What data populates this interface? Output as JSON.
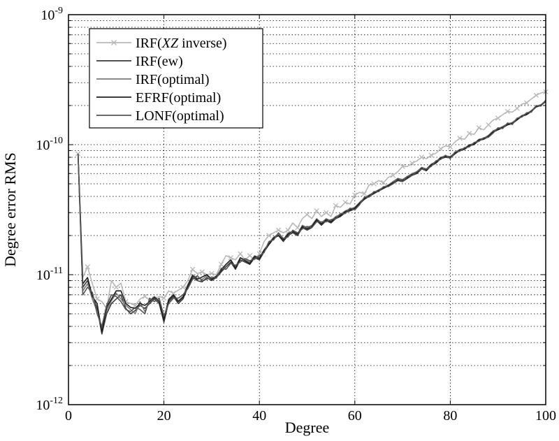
{
  "chart_data": {
    "type": "line",
    "title": "",
    "xlabel": "Degree",
    "ylabel": "Degree error RMS",
    "xlim": [
      0,
      100
    ],
    "ylim": [
      1e-12,
      1e-09
    ],
    "yscale": "log",
    "grid": true,
    "legend_position": "top-left",
    "x_ticks": [
      {
        "value": 0,
        "label": "0"
      },
      {
        "value": 20,
        "label": "20"
      },
      {
        "value": 40,
        "label": "40"
      },
      {
        "value": 60,
        "label": "60"
      },
      {
        "value": 80,
        "label": "80"
      },
      {
        "value": 100,
        "label": "100"
      }
    ],
    "y_ticks": [
      {
        "value": 1e-12,
        "base": "10",
        "exp": "-12"
      },
      {
        "value": 1e-11,
        "base": "10",
        "exp": "-11"
      },
      {
        "value": 1e-10,
        "base": "10",
        "exp": "-10"
      },
      {
        "value": 1e-09,
        "base": "10",
        "exp": "-9"
      }
    ],
    "series": [
      {
        "name": "IRF(XZ inverse)",
        "name_parts": [
          {
            "text": "IRF(",
            "italic": false
          },
          {
            "text": "XZ",
            "italic": true
          },
          {
            "text": " inverse)",
            "italic": false
          }
        ],
        "color": "#b8b8b8",
        "marker": "x",
        "x": [
          2,
          3,
          4,
          5,
          6,
          7,
          8,
          9,
          10,
          11,
          12,
          13,
          14,
          15,
          16,
          17,
          18,
          19,
          20,
          21,
          22,
          23,
          24,
          25,
          26,
          27,
          28,
          29,
          30,
          31,
          32,
          33,
          34,
          35,
          36,
          37,
          38,
          39,
          40,
          41,
          42,
          43,
          44,
          45,
          46,
          47,
          48,
          49,
          50,
          51,
          52,
          53,
          54,
          55,
          56,
          57,
          58,
          59,
          60,
          61,
          62,
          63,
          64,
          65,
          66,
          67,
          68,
          69,
          70,
          71,
          72,
          73,
          74,
          75,
          76,
          77,
          78,
          79,
          80,
          81,
          82,
          83,
          84,
          85,
          86,
          87,
          88,
          89,
          90,
          91,
          92,
          93,
          94,
          95,
          96,
          97,
          98,
          99,
          100
        ],
        "y": [
          8.5e-11,
          9.5e-12,
          1.15e-11,
          8.5e-12,
          6.5e-12,
          6.2e-12,
          5.5e-12,
          9e-12,
          8e-12,
          8.6e-12,
          6.2e-12,
          6e-12,
          5.8e-12,
          6.5e-12,
          6.8e-12,
          6.4e-12,
          6.5e-12,
          6.8e-12,
          6.6e-12,
          7.5e-12,
          7.2e-12,
          7.6e-12,
          8e-12,
          9e-12,
          1.1e-11,
          1.02e-11,
          1.05e-11,
          1e-11,
          1.02e-11,
          1e-11,
          1.2e-11,
          1.4e-11,
          1.35e-11,
          1.3e-11,
          1.45e-11,
          1.3e-11,
          1.4e-11,
          1.3e-11,
          1.45e-11,
          1.8e-11,
          2e-11,
          2.1e-11,
          2.2e-11,
          2.1e-11,
          2.2e-11,
          2.5e-11,
          2.3e-11,
          2.7e-11,
          2.9e-11,
          2.7e-11,
          3.1e-11,
          2.8e-11,
          3e-11,
          2.8e-11,
          3.4e-11,
          3.3e-11,
          3.6e-11,
          3.5e-11,
          4.1e-11,
          4.3e-11,
          4.2e-11,
          4.9e-11,
          5e-11,
          5.3e-11,
          5.1e-11,
          5.6e-11,
          5.8e-11,
          6.2e-11,
          6.8e-11,
          6.8e-11,
          7.2e-11,
          7.5e-11,
          8e-11,
          7.8e-11,
          8.3e-11,
          8.6e-11,
          9.3e-11,
          9.8e-11,
          9.6e-11,
          1.05e-10,
          1.12e-10,
          1.1e-10,
          1.22e-10,
          1.2e-10,
          1.35e-10,
          1.3e-10,
          1.42e-10,
          1.55e-10,
          1.6e-10,
          1.7e-10,
          1.8e-10,
          1.78e-10,
          1.9e-10,
          2.05e-10,
          2.1e-10,
          2.25e-10,
          2.4e-10,
          2.5e-10,
          2.55e-10
        ]
      },
      {
        "name": "IRF(ew)",
        "color": "#3a3a3a",
        "x": [
          2,
          3,
          4,
          5,
          6,
          7,
          8,
          9,
          10,
          11,
          12,
          13,
          14,
          15,
          16,
          17,
          18,
          19,
          20,
          21,
          22,
          23,
          24,
          25,
          26,
          27,
          28,
          29,
          30,
          31,
          32,
          33,
          34,
          35,
          36,
          37,
          38,
          39,
          40,
          41,
          42,
          43,
          44,
          45,
          46,
          47,
          48,
          49,
          50,
          51,
          52,
          53,
          54,
          55,
          56,
          57,
          58,
          59,
          60,
          61,
          62,
          63,
          64,
          65,
          66,
          67,
          68,
          69,
          70,
          71,
          72,
          73,
          74,
          75,
          76,
          77,
          78,
          79,
          80,
          81,
          82,
          83,
          84,
          85,
          86,
          87,
          88,
          89,
          90,
          91,
          92,
          93,
          94,
          95,
          96,
          97,
          98,
          99,
          100
        ],
        "y": [
          8.5e-11,
          8e-12,
          9e-12,
          7e-12,
          5.5e-12,
          3.5e-12,
          5e-12,
          6e-12,
          6.5e-12,
          7e-12,
          5.5e-12,
          5e-12,
          5.3e-12,
          5.8e-12,
          5.5e-12,
          6e-12,
          6.5e-12,
          6e-12,
          4.3e-12,
          6.2e-12,
          6.8e-12,
          6e-12,
          6.5e-12,
          8e-12,
          9.5e-12,
          9e-12,
          8.8e-12,
          9.5e-12,
          9e-12,
          9.5e-12,
          1.05e-11,
          1.15e-11,
          1.25e-11,
          1.1e-11,
          1.3e-11,
          1.25e-11,
          1.2e-11,
          1.35e-11,
          1.3e-11,
          1.5e-11,
          1.7e-11,
          1.9e-11,
          2e-11,
          1.8e-11,
          2e-11,
          2.1e-11,
          2e-11,
          2.3e-11,
          2.2e-11,
          2.3e-11,
          2.6e-11,
          2.4e-11,
          2.6e-11,
          2.5e-11,
          2.7e-11,
          2.8e-11,
          3e-11,
          3.1e-11,
          3.2e-11,
          3.5e-11,
          3.8e-11,
          4e-11,
          4.2e-11,
          4.4e-11,
          4.6e-11,
          4.8e-11,
          5e-11,
          5.3e-11,
          5.2e-11,
          5.5e-11,
          5.8e-11,
          6e-11,
          6.5e-11,
          6.3e-11,
          6.9e-11,
          7.2e-11,
          7.8e-11,
          8e-11,
          7.9e-11,
          8.5e-11,
          9e-11,
          9.2e-11,
          9.8e-11,
          1e-10,
          1.08e-10,
          1.1e-10,
          1.15e-10,
          1.25e-10,
          1.3e-10,
          1.35e-10,
          1.42e-10,
          1.45e-10,
          1.55e-10,
          1.65e-10,
          1.7e-10,
          1.8e-10,
          1.95e-10,
          2e-10,
          2.15e-10
        ]
      },
      {
        "name": "IRF(optimal)",
        "color": "#7a7a7a",
        "x": [
          2,
          3,
          4,
          5,
          6,
          7,
          8,
          9,
          10,
          11,
          12,
          13,
          14,
          15,
          16,
          17,
          18,
          19,
          20,
          21,
          22,
          23,
          24,
          25,
          26,
          27,
          28,
          29,
          30,
          31,
          32,
          33,
          34,
          35,
          36,
          37,
          38,
          39,
          40,
          41,
          42,
          43,
          44,
          45,
          46,
          47,
          48,
          49,
          50,
          51,
          52,
          53,
          54,
          55,
          56,
          57,
          58,
          59,
          60,
          61,
          62,
          63,
          64,
          65,
          66,
          67,
          68,
          69,
          70,
          71,
          72,
          73,
          74,
          75,
          76,
          77,
          78,
          79,
          80,
          81,
          82,
          83,
          84,
          85,
          86,
          87,
          88,
          89,
          90,
          91,
          92,
          93,
          94,
          95,
          96,
          97,
          98,
          99,
          100
        ],
        "y": [
          8.5e-11,
          7.5e-12,
          8.5e-12,
          6.5e-12,
          5.2e-12,
          3.8e-12,
          5.3e-12,
          6.3e-12,
          7.2e-12,
          6.5e-12,
          5.8e-12,
          5.4e-12,
          5e-12,
          6.2e-12,
          5.2e-12,
          6.3e-12,
          6.8e-12,
          6.3e-12,
          4.6e-12,
          6.5e-12,
          7e-12,
          6.3e-12,
          6.8e-12,
          8.4e-12,
          1e-11,
          9.4e-12,
          9.2e-12,
          9.8e-12,
          9.3e-12,
          9.8e-12,
          1.1e-11,
          1.2e-11,
          1.3e-11,
          1.15e-11,
          1.35e-11,
          1.3e-11,
          1.25e-11,
          1.4e-11,
          1.35e-11,
          1.55e-11,
          1.75e-11,
          1.95e-11,
          2.05e-11,
          1.85e-11,
          2.1e-11,
          2.15e-11,
          2.05e-11,
          2.4e-11,
          2.3e-11,
          2.4e-11,
          2.7e-11,
          2.5e-11,
          2.7e-11,
          2.6e-11,
          2.8e-11,
          2.9e-11,
          3.1e-11,
          3.2e-11,
          3.3e-11,
          3.6e-11,
          3.9e-11,
          4.1e-11,
          4.3e-11,
          4.5e-11,
          4.7e-11,
          4.9e-11,
          5.2e-11,
          5.5e-11,
          5.4e-11,
          5.7e-11,
          6e-11,
          6.2e-11,
          6.7e-11,
          6.5e-11,
          7.1e-11,
          7.4e-11,
          8e-11,
          8.2e-11,
          8.1e-11,
          8.7e-11,
          9.2e-11,
          9.4e-11,
          1e-10,
          1.02e-10,
          1.1e-10,
          1.12e-10,
          1.18e-10,
          1.28e-10,
          1.33e-10,
          1.38e-10,
          1.45e-10,
          1.48e-10,
          1.58e-10,
          1.68e-10,
          1.73e-10,
          1.83e-10,
          1.98e-10,
          2.03e-10,
          2.18e-10
        ]
      },
      {
        "name": "EFRF(optimal)",
        "color": "#1e1e1e",
        "x": [
          2,
          3,
          4,
          5,
          6,
          7,
          8,
          9,
          10,
          11,
          12,
          13,
          14,
          15,
          16,
          17,
          18,
          19,
          20,
          21,
          22,
          23,
          24,
          25,
          26,
          27,
          28,
          29,
          30,
          31,
          32,
          33,
          34,
          35,
          36,
          37,
          38,
          39,
          40,
          41,
          42,
          43,
          44,
          45,
          46,
          47,
          48,
          49,
          50,
          51,
          52,
          53,
          54,
          55,
          56,
          57,
          58,
          59,
          60,
          61,
          62,
          63,
          64,
          65,
          66,
          67,
          68,
          69,
          70,
          71,
          72,
          73,
          74,
          75,
          76,
          77,
          78,
          79,
          80,
          81,
          82,
          83,
          84,
          85,
          86,
          87,
          88,
          89,
          90,
          91,
          92,
          93,
          94,
          95,
          96,
          97,
          98,
          99,
          100
        ],
        "y": [
          8.5e-11,
          8.5e-12,
          9.5e-12,
          6.8e-12,
          6e-12,
          3.6e-12,
          5.6e-12,
          6.5e-12,
          7.5e-12,
          7.5e-12,
          6e-12,
          5.6e-12,
          5.5e-12,
          6e-12,
          5.8e-12,
          6.2e-12,
          6.7e-12,
          6.2e-12,
          4.5e-12,
          6.4e-12,
          7e-12,
          6.2e-12,
          6.7e-12,
          8.2e-12,
          9.8e-12,
          9.2e-12,
          9.6e-12,
          1e-11,
          9.2e-12,
          9.7e-12,
          1.08e-11,
          1.2e-11,
          1.3e-11,
          1.12e-11,
          1.35e-11,
          1.28e-11,
          1.22e-11,
          1.38e-11,
          1.33e-11,
          1.55e-11,
          1.72e-11,
          1.92e-11,
          2e-11,
          1.85e-11,
          2.05e-11,
          2.15e-11,
          2.05e-11,
          2.35e-11,
          2.25e-11,
          2.35e-11,
          2.65e-11,
          2.45e-11,
          2.65e-11,
          2.55e-11,
          2.75e-11,
          2.85e-11,
          3.05e-11,
          3.15e-11,
          3.25e-11,
          3.55e-11,
          3.85e-11,
          4.05e-11,
          4.25e-11,
          4.45e-11,
          4.65e-11,
          4.85e-11,
          5.1e-11,
          5.4e-11,
          5.3e-11,
          5.6e-11,
          5.9e-11,
          6.1e-11,
          6.6e-11,
          6.4e-11,
          7e-11,
          7.3e-11,
          7.9e-11,
          8.1e-11,
          8e-11,
          8.6e-11,
          9.1e-11,
          9.3e-11,
          9.9e-11,
          1.01e-10,
          1.09e-10,
          1.11e-10,
          1.16e-10,
          1.26e-10,
          1.31e-10,
          1.36e-10,
          1.43e-10,
          1.46e-10,
          1.56e-10,
          1.66e-10,
          1.71e-10,
          1.81e-10,
          1.96e-10,
          2.01e-10,
          2.16e-10
        ]
      },
      {
        "name": "LONF(optimal)",
        "color": "#555555",
        "x": [
          2,
          3,
          4,
          5,
          6,
          7,
          8,
          9,
          10,
          11,
          12,
          13,
          14,
          15,
          16,
          17,
          18,
          19,
          20,
          21,
          22,
          23,
          24,
          25,
          26,
          27,
          28,
          29,
          30,
          31,
          32,
          33,
          34,
          35,
          36,
          37,
          38,
          39,
          40,
          41,
          42,
          43,
          44,
          45,
          46,
          47,
          48,
          49,
          50,
          51,
          52,
          53,
          54,
          55,
          56,
          57,
          58,
          59,
          60,
          61,
          62,
          63,
          64,
          65,
          66,
          67,
          68,
          69,
          70,
          71,
          72,
          73,
          74,
          75,
          76,
          77,
          78,
          79,
          80,
          81,
          82,
          83,
          84,
          85,
          86,
          87,
          88,
          89,
          90,
          91,
          92,
          93,
          94,
          95,
          96,
          97,
          98,
          99,
          100
        ],
        "y": [
          8.5e-11,
          7e-12,
          8e-12,
          7.3e-12,
          5e-12,
          4e-12,
          5.8e-12,
          7e-12,
          6.8e-12,
          6.2e-12,
          5.4e-12,
          5.2e-12,
          5.6e-12,
          5.4e-12,
          5e-12,
          6.6e-12,
          6.2e-12,
          6.6e-12,
          4.8e-12,
          6e-12,
          6.6e-12,
          6.6e-12,
          7e-12,
          7.8e-12,
          9.2e-12,
          9.8e-12,
          9e-12,
          9.2e-12,
          9.6e-12,
          9.4e-12,
          1.12e-11,
          1.1e-11,
          1.22e-11,
          1.18e-11,
          1.25e-11,
          1.33e-11,
          1.28e-11,
          1.32e-11,
          1.4e-11,
          1.48e-11,
          1.8e-11,
          1.85e-11,
          2.1e-11,
          1.9e-11,
          1.95e-11,
          2.2e-11,
          2.1e-11,
          2.25e-11,
          2.35e-11,
          2.3e-11,
          2.55e-11,
          2.55e-11,
          2.55e-11,
          2.65e-11,
          2.7e-11,
          2.95e-11,
          2.95e-11,
          3.25e-11,
          3.15e-11,
          3.45e-11,
          3.95e-11,
          3.95e-11,
          4.35e-11,
          4.35e-11,
          4.75e-11,
          4.75e-11,
          5e-11,
          5.5e-11,
          5.2e-11,
          5.7e-11,
          5.8e-11,
          6.2e-11,
          6.5e-11,
          6.5e-11,
          6.8e-11,
          7.5e-11,
          7.7e-11,
          8.3e-11,
          7.8e-11,
          8.8e-11,
          8.9e-11,
          9.5e-11,
          9.6e-11,
          1.04e-10,
          1.06e-10,
          1.13e-10,
          1.14e-10,
          1.23e-10,
          1.35e-10,
          1.33e-10,
          1.47e-10,
          1.43e-10,
          1.6e-10,
          1.63e-10,
          1.76e-10,
          1.78e-10,
          2e-10,
          1.98e-10,
          2.2e-10
        ]
      }
    ]
  }
}
